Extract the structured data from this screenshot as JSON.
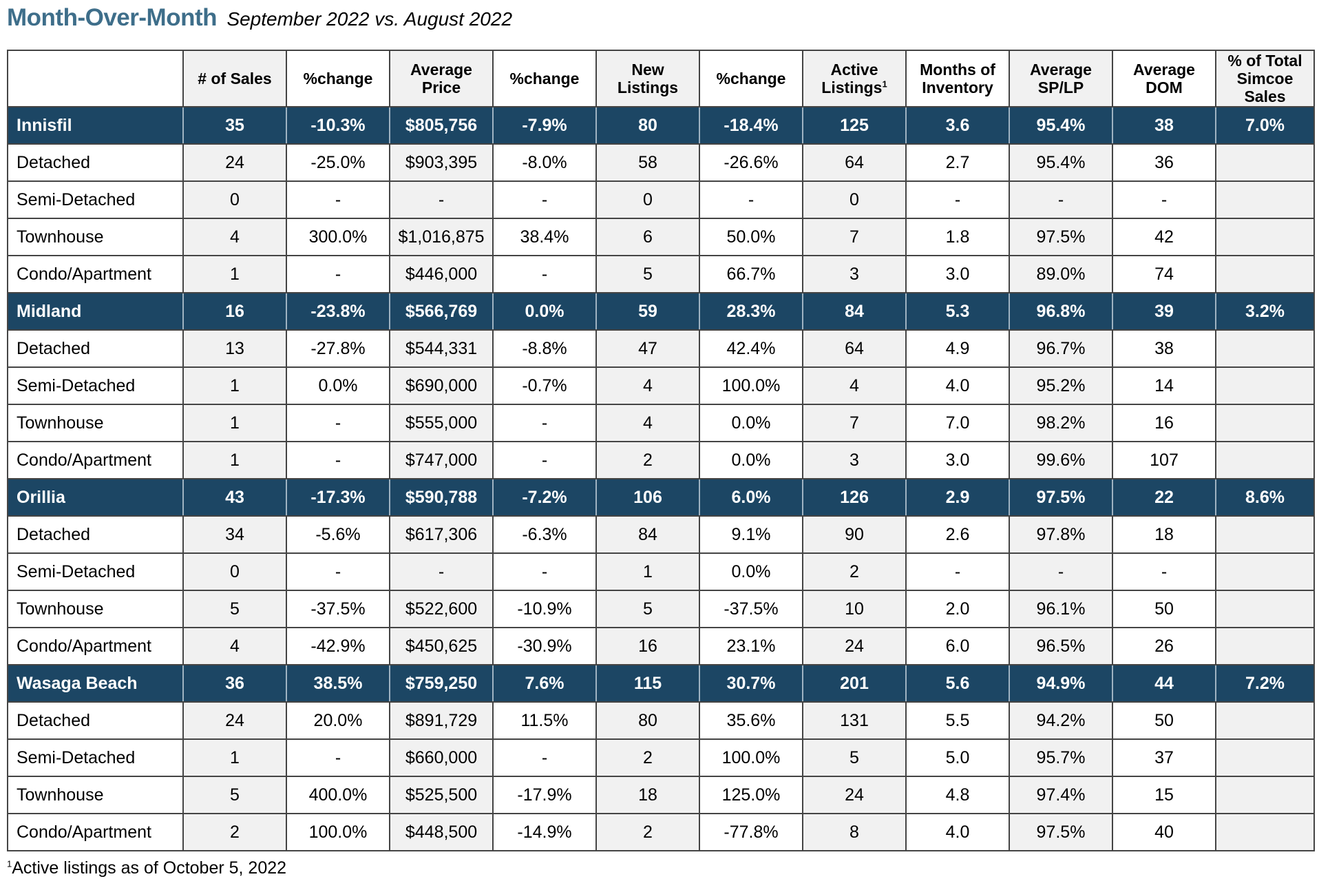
{
  "title": "Month-Over-Month",
  "subtitle": "September 2022 vs. August 2022",
  "columns": [
    {
      "l1": "",
      "l2": "",
      "l3": ""
    },
    {
      "l1": "# of Sales",
      "l2": "",
      "l3": ""
    },
    {
      "l1": "%change",
      "l2": "",
      "l3": ""
    },
    {
      "l1": "Average",
      "l2": "Price",
      "l3": ""
    },
    {
      "l1": "%change",
      "l2": "",
      "l3": ""
    },
    {
      "l1": "New",
      "l2": "Listings",
      "l3": ""
    },
    {
      "l1": "%change",
      "l2": "",
      "l3": ""
    },
    {
      "l1": "Active",
      "l2": "Listings",
      "l3": "",
      "sup": "1"
    },
    {
      "l1": "Months of",
      "l2": "Inventory",
      "l3": ""
    },
    {
      "l1": "Average",
      "l2": "SP/LP",
      "l3": ""
    },
    {
      "l1": "Average",
      "l2": "DOM",
      "l3": ""
    },
    {
      "l1": "% of Total",
      "l2": "Simcoe",
      "l3": "Sales"
    }
  ],
  "rows": [
    {
      "type": "region",
      "cells": [
        "Innisfil",
        "35",
        "-10.3%",
        "$805,756",
        "-7.9%",
        "80",
        "-18.4%",
        "125",
        "3.6",
        "95.4%",
        "38",
        "7.0%"
      ]
    },
    {
      "type": "sub",
      "cells": [
        "Detached",
        "24",
        "-25.0%",
        "$903,395",
        "-8.0%",
        "58",
        "-26.6%",
        "64",
        "2.7",
        "95.4%",
        "36",
        ""
      ]
    },
    {
      "type": "sub",
      "cells": [
        "Semi-Detached",
        "0",
        "-",
        "-",
        "-",
        "0",
        "-",
        "0",
        "-",
        "-",
        "-",
        ""
      ]
    },
    {
      "type": "sub",
      "cells": [
        "Townhouse",
        "4",
        "300.0%",
        "$1,016,875",
        "38.4%",
        "6",
        "50.0%",
        "7",
        "1.8",
        "97.5%",
        "42",
        ""
      ]
    },
    {
      "type": "sub",
      "cells": [
        "Condo/Apartment",
        "1",
        "-",
        "$446,000",
        "-",
        "5",
        "66.7%",
        "3",
        "3.0",
        "89.0%",
        "74",
        ""
      ]
    },
    {
      "type": "region",
      "cells": [
        "Midland",
        "16",
        "-23.8%",
        "$566,769",
        "0.0%",
        "59",
        "28.3%",
        "84",
        "5.3",
        "96.8%",
        "39",
        "3.2%"
      ]
    },
    {
      "type": "sub",
      "cells": [
        "Detached",
        "13",
        "-27.8%",
        "$544,331",
        "-8.8%",
        "47",
        "42.4%",
        "64",
        "4.9",
        "96.7%",
        "38",
        ""
      ]
    },
    {
      "type": "sub",
      "cells": [
        "Semi-Detached",
        "1",
        "0.0%",
        "$690,000",
        "-0.7%",
        "4",
        "100.0%",
        "4",
        "4.0",
        "95.2%",
        "14",
        ""
      ]
    },
    {
      "type": "sub",
      "cells": [
        "Townhouse",
        "1",
        "-",
        "$555,000",
        "-",
        "4",
        "0.0%",
        "7",
        "7.0",
        "98.2%",
        "16",
        ""
      ]
    },
    {
      "type": "sub",
      "cells": [
        "Condo/Apartment",
        "1",
        "-",
        "$747,000",
        "-",
        "2",
        "0.0%",
        "3",
        "3.0",
        "99.6%",
        "107",
        ""
      ]
    },
    {
      "type": "region",
      "cells": [
        "Orillia",
        "43",
        "-17.3%",
        "$590,788",
        "-7.2%",
        "106",
        "6.0%",
        "126",
        "2.9",
        "97.5%",
        "22",
        "8.6%"
      ]
    },
    {
      "type": "sub",
      "cells": [
        "Detached",
        "34",
        "-5.6%",
        "$617,306",
        "-6.3%",
        "84",
        "9.1%",
        "90",
        "2.6",
        "97.8%",
        "18",
        ""
      ]
    },
    {
      "type": "sub",
      "cells": [
        "Semi-Detached",
        "0",
        "-",
        "-",
        "-",
        "1",
        "0.0%",
        "2",
        "-",
        "-",
        "-",
        ""
      ]
    },
    {
      "type": "sub",
      "cells": [
        "Townhouse",
        "5",
        "-37.5%",
        "$522,600",
        "-10.9%",
        "5",
        "-37.5%",
        "10",
        "2.0",
        "96.1%",
        "50",
        ""
      ]
    },
    {
      "type": "sub",
      "cells": [
        "Condo/Apartment",
        "4",
        "-42.9%",
        "$450,625",
        "-30.9%",
        "16",
        "23.1%",
        "24",
        "6.0",
        "96.5%",
        "26",
        ""
      ]
    },
    {
      "type": "region",
      "cells": [
        "Wasaga Beach",
        "36",
        "38.5%",
        "$759,250",
        "7.6%",
        "115",
        "30.7%",
        "201",
        "5.6",
        "94.9%",
        "44",
        "7.2%"
      ]
    },
    {
      "type": "sub",
      "cells": [
        "Detached",
        "24",
        "20.0%",
        "$891,729",
        "11.5%",
        "80",
        "35.6%",
        "131",
        "5.5",
        "94.2%",
        "50",
        ""
      ]
    },
    {
      "type": "sub",
      "cells": [
        "Semi-Detached",
        "1",
        "-",
        "$660,000",
        "-",
        "2",
        "100.0%",
        "5",
        "5.0",
        "95.7%",
        "37",
        ""
      ]
    },
    {
      "type": "sub",
      "cells": [
        "Townhouse",
        "5",
        "400.0%",
        "$525,500",
        "-17.9%",
        "18",
        "125.0%",
        "24",
        "4.8",
        "97.4%",
        "15",
        ""
      ]
    },
    {
      "type": "sub",
      "cells": [
        "Condo/Apartment",
        "2",
        "100.0%",
        "$448,500",
        "-14.9%",
        "2",
        "-77.8%",
        "8",
        "4.0",
        "97.5%",
        "40",
        ""
      ]
    }
  ],
  "footnote": {
    "sup": "1",
    "text": "Active listings as of October 5, 2022"
  },
  "colors": {
    "title": "#3e6e8a",
    "region_bg": "#1c4664",
    "shade": "#f1f1f1"
  }
}
